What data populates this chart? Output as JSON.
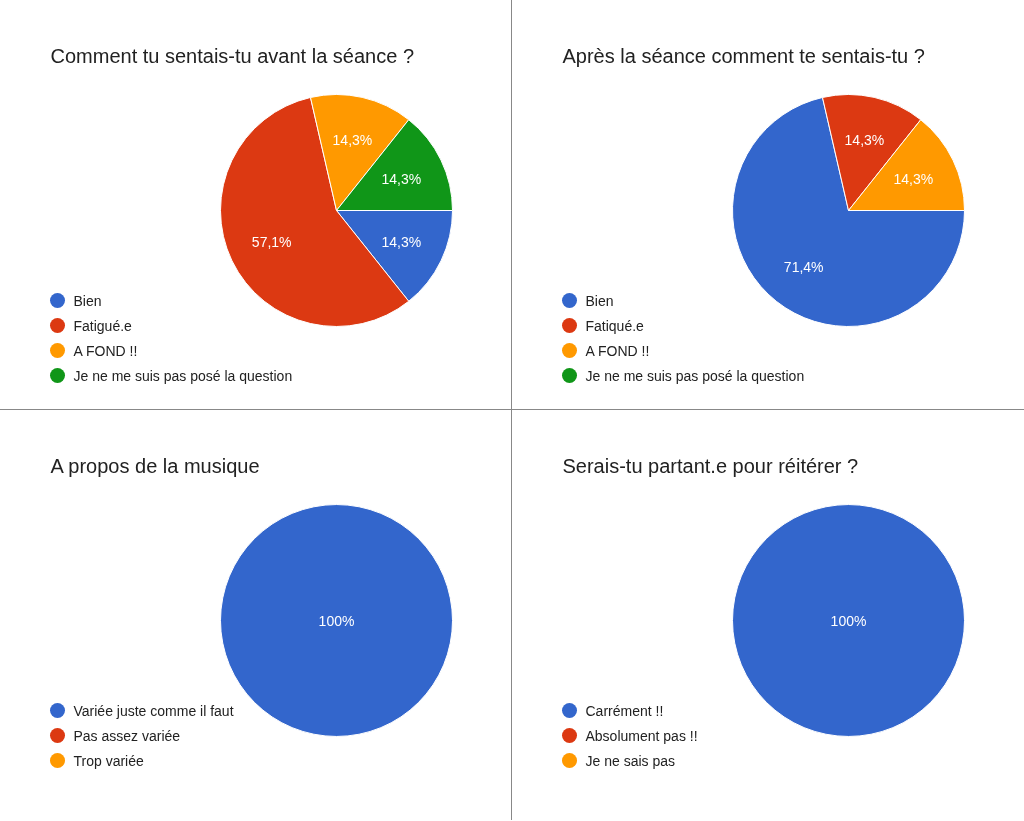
{
  "chart_data": [
    {
      "type": "pie",
      "title": "Comment tu sentais-tu avant la séance ?",
      "categories": [
        "Bien",
        "Fatigué.e",
        "A FOND !!",
        "Je ne me suis pas posé la question"
      ],
      "values": [
        14.3,
        57.1,
        14.3,
        14.3
      ],
      "colors": [
        "#3366cc",
        "#dc3912",
        "#ff9900",
        "#109618"
      ],
      "value_labels": [
        "14,3%",
        "57,1%",
        "14,3%",
        "14,3%"
      ],
      "legend": "bottom left"
    },
    {
      "type": "pie",
      "title": "Après la séance comment te sentais-tu ?",
      "categories": [
        "Bien",
        "Fatiqué.e",
        "A FOND !!",
        "Je ne me suis pas posé la question"
      ],
      "values": [
        71.4,
        14.3,
        14.3,
        0
      ],
      "colors": [
        "#3366cc",
        "#dc3912",
        "#ff9900",
        "#109618"
      ],
      "value_labels": [
        "71,4%",
        "14,3%",
        "14,3%",
        null
      ],
      "legend": "bottom left"
    },
    {
      "type": "pie",
      "title": "A propos de la musique",
      "categories": [
        "Variée juste comme il faut",
        "Pas assez variée",
        "Trop variée"
      ],
      "values": [
        100,
        0,
        0
      ],
      "colors": [
        "#3366cc",
        "#dc3912",
        "#ff9900"
      ],
      "value_labels": [
        "100%",
        null,
        null
      ],
      "legend": "bottom left"
    },
    {
      "type": "pie",
      "title": "Serais-tu partant.e pour réitérer ?",
      "categories": [
        "Carrément !!",
        "Absolument pas !!",
        "Je ne sais pas"
      ],
      "values": [
        100,
        0,
        0
      ],
      "colors": [
        "#3366cc",
        "#dc3912",
        "#ff9900"
      ],
      "value_labels": [
        "100%",
        null,
        null
      ],
      "legend": "bottom left"
    }
  ]
}
